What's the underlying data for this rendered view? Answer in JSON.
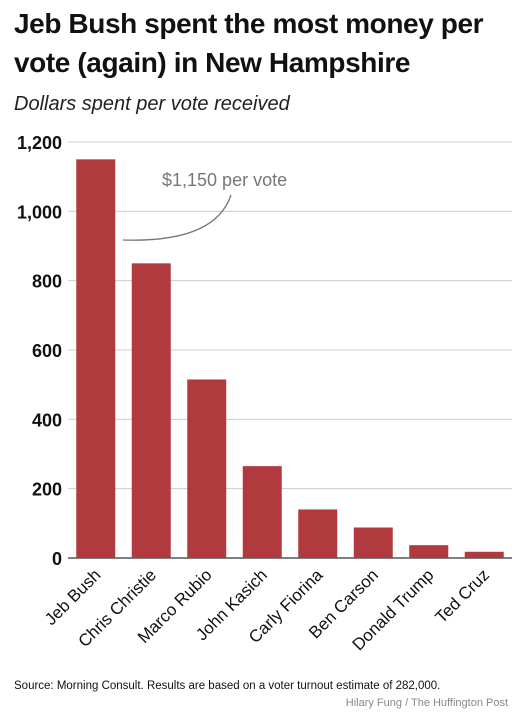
{
  "title": "Jeb Bush spent the most money per vote (again) in New Hampshire",
  "subtitle": "Dollars spent per vote received",
  "annotation": "$1,150 per vote",
  "source": "Source: Morning Consult. Results are based on a voter turnout estimate of 282,000.",
  "credit": "Hilary Fung / The Huffington Post",
  "colors": {
    "bar": "#b03a3e",
    "grid": "#cccccc",
    "annotation": "#777777"
  },
  "chart_data": {
    "type": "bar",
    "categories": [
      "Jeb Bush",
      "Chris Christie",
      "Marco Rubio",
      "John Kasich",
      "Carly Fiorina",
      "Ben Carson",
      "Donald Trump",
      "Ted Cruz"
    ],
    "values": [
      1150,
      850,
      515,
      265,
      140,
      88,
      37,
      18
    ],
    "yticks": [
      "0",
      "200",
      "400",
      "600",
      "800",
      "1,000",
      "1,200"
    ],
    "ytick_values": [
      0,
      200,
      400,
      600,
      800,
      1000,
      1200
    ],
    "ylim": [
      0,
      1200
    ],
    "grid": true,
    "xlabel": "",
    "ylabel": ""
  }
}
